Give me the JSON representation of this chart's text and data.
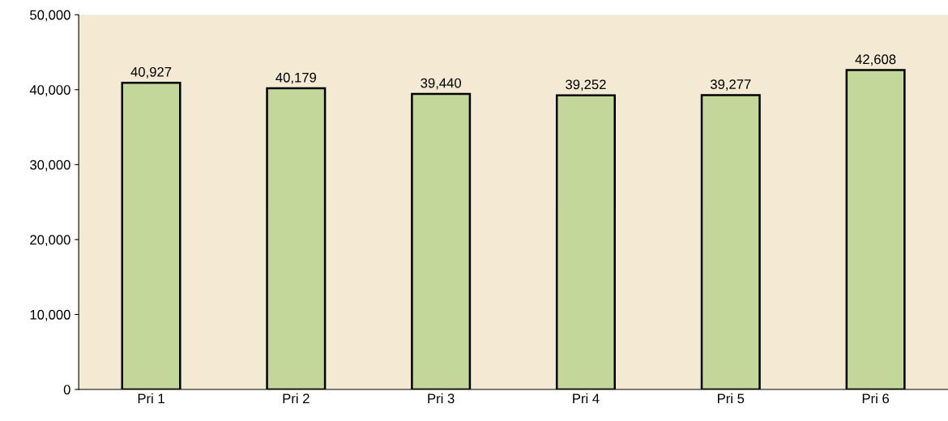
{
  "chart_data": {
    "type": "bar",
    "categories": [
      "Pri 1",
      "Pri 2",
      "Pri 3",
      "Pri 4",
      "Pri 5",
      "Pri 6"
    ],
    "values": [
      40927,
      40179,
      39440,
      39252,
      39277,
      42608
    ],
    "value_labels": [
      "40,927",
      "40,179",
      "39,440",
      "39,252",
      "39,277",
      "42,608"
    ],
    "color": "#c4d79b",
    "ylim": [
      0,
      50000
    ],
    "yticks": [
      {
        "value": 0,
        "label": "0"
      },
      {
        "value": 10000,
        "label": "10,000"
      },
      {
        "value": 20000,
        "label": "20,000"
      },
      {
        "value": 30000,
        "label": "30,000"
      },
      {
        "value": 40000,
        "label": "40,000"
      },
      {
        "value": 50000,
        "label": "50,000"
      }
    ],
    "grid": false,
    "legend": false
  }
}
